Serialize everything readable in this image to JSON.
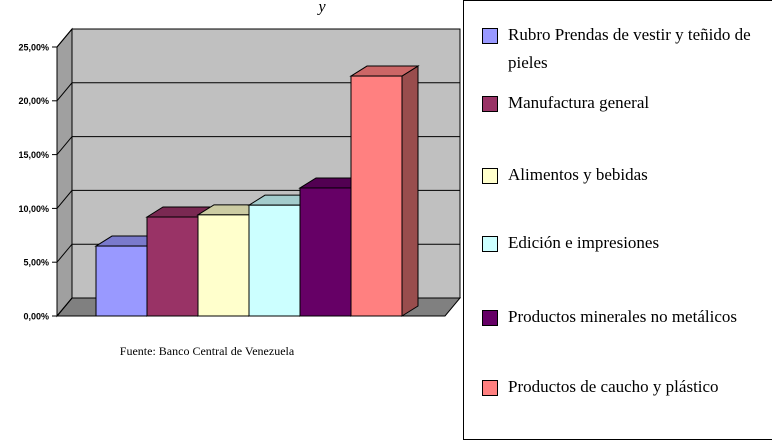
{
  "chart_data": {
    "type": "bar3d",
    "title": "y",
    "note": "Fuente: Banco Central de  Venezuela",
    "categories": [
      "Rubro Prendas de vestir y teñido de pieles",
      "Manufactura general",
      "Alimentos y bebidas",
      "Edición e impresiones",
      "Productos minerales no metálicos",
      "Productos de caucho y plástico"
    ],
    "values": [
      6.5,
      9.2,
      9.4,
      10.3,
      11.9,
      22.3
    ],
    "colors": [
      "#9999ff",
      "#993366",
      "#ffffcc",
      "#ccffff",
      "#660066",
      "#ff8080"
    ],
    "ylim": [
      0,
      25
    ],
    "yticks": [
      {
        "value": 0,
        "label": "0,00%"
      },
      {
        "value": 5,
        "label": "5,00%"
      },
      {
        "value": 10,
        "label": "10,00%"
      },
      {
        "value": 15,
        "label": "15,00%"
      },
      {
        "value": 20,
        "label": "20,00%"
      },
      {
        "value": 25,
        "label": "25,00%"
      }
    ],
    "grid": true,
    "legend": "right"
  }
}
